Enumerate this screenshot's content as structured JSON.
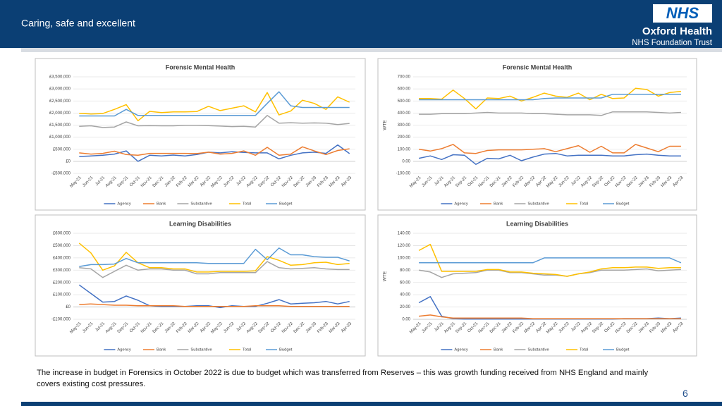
{
  "header": {
    "tagline": "Caring, safe and excellent",
    "logo": "NHS",
    "org": "Oxford Health",
    "trust": "NHS Foundation Trust"
  },
  "footer": {
    "note": "The increase in budget in Forensics in October 2022 is due to budget  which was transferred from Reserves – this was growth funding received from NHS England and mainly covers existing cost pressures.",
    "page_number": "6"
  },
  "chart_data": [
    {
      "type": "line",
      "title": "Forensic Mental Health",
      "grid": true,
      "legend": "bottom",
      "categories": [
        "May-21",
        "Jun-21",
        "Jul-21",
        "Aug-21",
        "Sep-21",
        "Oct-21",
        "Nov-21",
        "Dec-21",
        "Jan-22",
        "Feb-22",
        "Mar-22",
        "Apr-22",
        "May-22",
        "Jun-22",
        "Jul-22",
        "Aug-22",
        "Sep-22",
        "Oct-22",
        "Nov-22",
        "Dec-22",
        "Jan-23",
        "Feb-23",
        "Mar-23",
        "Apr-23"
      ],
      "ylim": [
        -500000,
        3500000
      ],
      "yticks": [
        {
          "value": -500000,
          "label": "-£500,000"
        },
        {
          "value": 0,
          "label": "£0"
        },
        {
          "value": 500000,
          "label": "£500,000"
        },
        {
          "value": 1000000,
          "label": "£1,000,000"
        },
        {
          "value": 1500000,
          "label": "£1,500,000"
        },
        {
          "value": 2000000,
          "label": "£2,000,000"
        },
        {
          "value": 2500000,
          "label": "£2,500,000"
        },
        {
          "value": 3000000,
          "label": "£3,000,000"
        },
        {
          "value": 3500000,
          "label": "£3,500,000"
        }
      ],
      "series": [
        {
          "name": "Agency",
          "color": "#4472c4",
          "values": [
            200000,
            220000,
            250000,
            300000,
            430000,
            0,
            250000,
            220000,
            260000,
            220000,
            280000,
            380000,
            350000,
            400000,
            370000,
            350000,
            350000,
            100000,
            250000,
            350000,
            380000,
            330000,
            680000,
            320000
          ]
        },
        {
          "name": "Bank",
          "color": "#ed7d31",
          "values": [
            350000,
            300000,
            330000,
            420000,
            280000,
            250000,
            330000,
            330000,
            330000,
            330000,
            320000,
            380000,
            300000,
            330000,
            430000,
            250000,
            580000,
            250000,
            300000,
            600000,
            430000,
            280000,
            450000,
            520000
          ]
        },
        {
          "name": "Substantive",
          "color": "#a5a5a5",
          "values": [
            1450000,
            1470000,
            1400000,
            1420000,
            1630000,
            1470000,
            1480000,
            1470000,
            1470000,
            1490000,
            1490000,
            1480000,
            1460000,
            1440000,
            1450000,
            1420000,
            1900000,
            1580000,
            1600000,
            1580000,
            1590000,
            1580000,
            1520000,
            1570000
          ]
        },
        {
          "name": "Total",
          "color": "#ffc000",
          "values": [
            1990000,
            1960000,
            1980000,
            2150000,
            2350000,
            1680000,
            2070000,
            2020000,
            2050000,
            2050000,
            2060000,
            2280000,
            2100000,
            2200000,
            2300000,
            2050000,
            2850000,
            1920000,
            2080000,
            2530000,
            2400000,
            2150000,
            2670000,
            2450000
          ]
        },
        {
          "name": "Budget",
          "color": "#5b9bd5",
          "values": [
            1880000,
            1880000,
            1880000,
            1880000,
            2150000,
            1900000,
            1900000,
            1900000,
            1900000,
            1900000,
            1900000,
            1900000,
            1900000,
            1900000,
            1900000,
            1900000,
            2400000,
            2880000,
            2300000,
            2230000,
            2230000,
            2230000,
            2230000,
            2230000
          ]
        }
      ]
    },
    {
      "type": "line",
      "title": "Forensic Mental Health",
      "ylabel": "WTE",
      "grid": true,
      "legend": "bottom",
      "categories": [
        "May-21",
        "Jun-21",
        "Jul-21",
        "Aug-21",
        "Sep-21",
        "Oct-21",
        "Nov-21",
        "Dec-21",
        "Jan-22",
        "Feb-22",
        "Mar-22",
        "Apr-22",
        "May-22",
        "Jun-22",
        "Jul-22",
        "Aug-22",
        "Sep-22",
        "Oct-22",
        "Nov-22",
        "Dec-22",
        "Jan-23",
        "Feb-23",
        "Mar-23",
        "Apr-23"
      ],
      "ylim": [
        -100,
        700
      ],
      "yticks": [
        {
          "value": -100,
          "label": "-100.00"
        },
        {
          "value": 0,
          "label": "0.00"
        },
        {
          "value": 100,
          "label": "100.00"
        },
        {
          "value": 200,
          "label": "200.00"
        },
        {
          "value": 300,
          "label": "300.00"
        },
        {
          "value": 400,
          "label": "400.00"
        },
        {
          "value": 500,
          "label": "500.00"
        },
        {
          "value": 600,
          "label": "600.00"
        },
        {
          "value": 700,
          "label": "700.00"
        }
      ],
      "series": [
        {
          "name": "Agency",
          "color": "#4472c4",
          "values": [
            25,
            45,
            15,
            55,
            50,
            -25,
            25,
            20,
            50,
            5,
            35,
            60,
            65,
            45,
            50,
            50,
            50,
            45,
            45,
            55,
            60,
            50,
            45,
            45
          ]
        },
        {
          "name": "Bank",
          "color": "#ed7d31",
          "values": [
            100,
            85,
            105,
            140,
            70,
            65,
            90,
            95,
            95,
            95,
            100,
            105,
            80,
            105,
            130,
            75,
            125,
            70,
            70,
            140,
            110,
            80,
            125,
            125
          ]
        },
        {
          "name": "Substantive",
          "color": "#a5a5a5",
          "values": [
            390,
            390,
            395,
            395,
            395,
            400,
            405,
            400,
            400,
            400,
            395,
            395,
            390,
            385,
            385,
            385,
            380,
            410,
            410,
            410,
            410,
            405,
            400,
            405
          ]
        },
        {
          "name": "Total",
          "color": "#ffc000",
          "values": [
            520,
            520,
            515,
            590,
            520,
            435,
            525,
            520,
            540,
            500,
            530,
            565,
            540,
            530,
            565,
            510,
            555,
            520,
            525,
            605,
            595,
            540,
            570,
            580
          ]
        },
        {
          "name": "Budget",
          "color": "#5b9bd5",
          "values": [
            510,
            510,
            510,
            510,
            510,
            510,
            510,
            510,
            510,
            510,
            510,
            520,
            525,
            525,
            525,
            525,
            525,
            555,
            555,
            555,
            555,
            555,
            555,
            555
          ]
        }
      ]
    },
    {
      "type": "line",
      "title": "Learning Disabilities",
      "grid": true,
      "legend": "bottom",
      "categories": [
        "May-21",
        "Jun-21",
        "Jul-21",
        "Aug-21",
        "Sep-21",
        "Oct-21",
        "Nov-21",
        "Dec-21",
        "Jan-22",
        "Feb-22",
        "Mar-22",
        "Apr-22",
        "May-22",
        "Jun-22",
        "Jul-22",
        "Aug-22",
        "Sep-22",
        "Oct-22",
        "Nov-22",
        "Dec-22",
        "Jan-23",
        "Feb-23",
        "Mar-23",
        "Apr-23"
      ],
      "ylim": [
        -100000,
        600000
      ],
      "yticks": [
        {
          "value": -100000,
          "label": "-£100,000"
        },
        {
          "value": 0,
          "label": "£0"
        },
        {
          "value": 100000,
          "label": "£100,000"
        },
        {
          "value": 200000,
          "label": "£200,000"
        },
        {
          "value": 300000,
          "label": "£300,000"
        },
        {
          "value": 400000,
          "label": "£400,000"
        },
        {
          "value": 500000,
          "label": "£500,000"
        },
        {
          "value": 600000,
          "label": "£600,000"
        }
      ],
      "series": [
        {
          "name": "Agency",
          "color": "#4472c4",
          "values": [
            180000,
            110000,
            40000,
            45000,
            90000,
            55000,
            10000,
            5000,
            5000,
            5000,
            10000,
            10000,
            -5000,
            10000,
            5000,
            5000,
            30000,
            60000,
            25000,
            30000,
            35000,
            45000,
            25000,
            45000
          ]
        },
        {
          "name": "Bank",
          "color": "#ed7d31",
          "values": [
            20000,
            25000,
            20000,
            15000,
            15000,
            10000,
            10000,
            10000,
            10000,
            5000,
            5000,
            5000,
            5000,
            5000,
            5000,
            10000,
            10000,
            10000,
            5000,
            5000,
            5000,
            5000,
            5000,
            5000
          ]
        },
        {
          "name": "Substantive",
          "color": "#a5a5a5",
          "values": [
            320000,
            310000,
            240000,
            290000,
            340000,
            300000,
            310000,
            310000,
            300000,
            300000,
            270000,
            270000,
            280000,
            280000,
            280000,
            280000,
            370000,
            320000,
            310000,
            315000,
            320000,
            310000,
            305000,
            305000
          ]
        },
        {
          "name": "Total",
          "color": "#ffc000",
          "values": [
            520000,
            440000,
            300000,
            335000,
            445000,
            360000,
            320000,
            320000,
            310000,
            310000,
            285000,
            285000,
            290000,
            290000,
            290000,
            295000,
            410000,
            380000,
            340000,
            345000,
            360000,
            365000,
            345000,
            355000
          ]
        },
        {
          "name": "Budget",
          "color": "#5b9bd5",
          "values": [
            330000,
            345000,
            345000,
            350000,
            395000,
            360000,
            360000,
            360000,
            360000,
            360000,
            360000,
            355000,
            355000,
            355000,
            355000,
            470000,
            385000,
            480000,
            425000,
            425000,
            410000,
            405000,
            405000,
            375000
          ]
        }
      ]
    },
    {
      "type": "line",
      "title": "Learning Disabilities",
      "ylabel": "WTE",
      "grid": true,
      "legend": "bottom",
      "categories": [
        "May-21",
        "Jun-21",
        "Jul-21",
        "Aug-21",
        "Sep-21",
        "Oct-21",
        "Nov-21",
        "Dec-21",
        "Jan-22",
        "Feb-22",
        "Mar-22",
        "Apr-22",
        "May-22",
        "Jun-22",
        "Jul-22",
        "Aug-22",
        "Sep-22",
        "Oct-22",
        "Nov-22",
        "Dec-22",
        "Jan-23",
        "Feb-23",
        "Mar-23",
        "Apr-23"
      ],
      "ylim": [
        0,
        140
      ],
      "yticks": [
        {
          "value": 0,
          "label": "0.00"
        },
        {
          "value": 20,
          "label": "20.00"
        },
        {
          "value": 40,
          "label": "40.00"
        },
        {
          "value": 60,
          "label": "60.00"
        },
        {
          "value": 80,
          "label": "80.00"
        },
        {
          "value": 100,
          "label": "100.00"
        },
        {
          "value": 120,
          "label": "120.00"
        },
        {
          "value": 140,
          "label": "140.00"
        }
      ],
      "series": [
        {
          "name": "Agency",
          "color": "#4472c4",
          "values": [
            27,
            37,
            5,
            1,
            0.5,
            0.5,
            0.5,
            0.5,
            0.5,
            0.5,
            0.5,
            0.5,
            0.5,
            0.5,
            0.5,
            0.5,
            0.5,
            0.5,
            1,
            1,
            1,
            2,
            1,
            2
          ]
        },
        {
          "name": "Bank",
          "color": "#ed7d31",
          "values": [
            5,
            7,
            4,
            2,
            2,
            2,
            2,
            2,
            2,
            2,
            1,
            1,
            1,
            1,
            1,
            1,
            1,
            1,
            1,
            1,
            1,
            1,
            1,
            1
          ]
        },
        {
          "name": "Substantive",
          "color": "#a5a5a5",
          "values": [
            80,
            77,
            68,
            74,
            75,
            76,
            80,
            80,
            76,
            76,
            74,
            72,
            72,
            70,
            74,
            76,
            80,
            80,
            80,
            81,
            82,
            79,
            80,
            81
          ]
        },
        {
          "name": "Total",
          "color": "#ffc000",
          "values": [
            112,
            122,
            78,
            78,
            78,
            78,
            81,
            81,
            77,
            77,
            75,
            74,
            73,
            70,
            74,
            77,
            82,
            84,
            84,
            85,
            85,
            83,
            84,
            84
          ]
        },
        {
          "name": "Budget",
          "color": "#5b9bd5",
          "values": [
            92,
            92,
            92,
            92,
            92,
            92,
            92,
            92,
            92,
            92,
            92,
            100,
            100,
            100,
            100,
            100,
            100,
            100,
            100,
            100,
            100,
            100,
            100,
            92
          ]
        }
      ]
    }
  ]
}
